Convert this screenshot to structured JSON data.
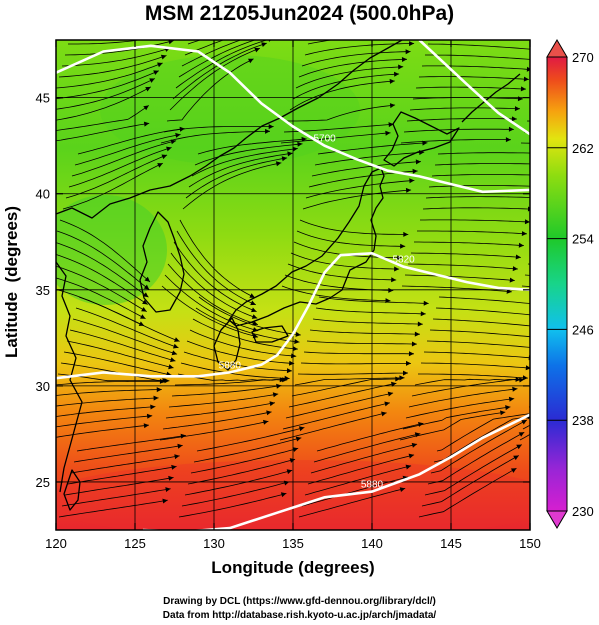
{
  "chart_data": {
    "type": "heatmap",
    "title": "MSM 21Z05Jun2024 (500.0hPa)",
    "xlabel": "Longitude (degrees)",
    "ylabel": "Latitude  (degrees)",
    "xlim": [
      120,
      150
    ],
    "ylim": [
      22.5,
      48
    ],
    "x_ticks": [
      "120",
      "125",
      "130",
      "135",
      "140",
      "145",
      "150"
    ],
    "x_tick_values": [
      120,
      125,
      130,
      135,
      140,
      145,
      150
    ],
    "y_ticks": [
      "25",
      "30",
      "35",
      "40",
      "45"
    ],
    "y_tick_values": [
      25,
      30,
      35,
      40,
      45
    ],
    "grid": true,
    "colorbar": {
      "position": "right",
      "range": [
        230,
        270
      ],
      "tick_labels": [
        "230",
        "238",
        "246",
        "254",
        "262",
        "270"
      ],
      "tick_values": [
        230,
        238,
        246,
        254,
        262,
        270
      ],
      "colors": [
        "#d61fd0",
        "#9a25d6",
        "#2b2bd3",
        "#0d72e8",
        "#10c0ee",
        "#18d48a",
        "#1fc92a",
        "#8fdd10",
        "#e2e410",
        "#f6a30f",
        "#ee4b1c",
        "#e01a44"
      ]
    },
    "contour_labels": [
      "5700",
      "5820",
      "5880"
    ],
    "contours": [
      {
        "label": "5700",
        "points": [
          [
            120,
            46.3
          ],
          [
            123,
            47.4
          ],
          [
            126,
            47.7
          ],
          [
            129,
            47.4
          ],
          [
            131,
            46.3
          ],
          [
            133,
            44.7
          ],
          [
            135,
            43.5
          ],
          [
            137,
            42.5
          ],
          [
            139,
            41.8
          ],
          [
            141,
            41.2
          ],
          [
            143,
            40.9
          ],
          [
            145,
            40.5
          ],
          [
            147,
            40.1
          ],
          [
            150,
            40.2
          ]
        ]
      },
      {
        "label": "",
        "points": [
          [
            143,
            48
          ],
          [
            146,
            45.7
          ],
          [
            148,
            44.2
          ],
          [
            150,
            43.1
          ]
        ]
      },
      {
        "label": "5820",
        "points": [
          [
            135,
            32.7
          ],
          [
            136,
            34.2
          ],
          [
            137,
            35.9
          ],
          [
            138,
            36.8
          ],
          [
            140,
            36.9
          ],
          [
            142,
            36.2
          ],
          [
            144,
            35.8
          ],
          [
            146,
            35.4
          ],
          [
            148,
            35.1
          ],
          [
            150,
            35.0
          ]
        ]
      },
      {
        "label": "5880",
        "points": [
          [
            120,
            30.4
          ],
          [
            123,
            30.7
          ],
          [
            126,
            30.5
          ],
          [
            129,
            30.5
          ],
          [
            131,
            30.7
          ],
          [
            133,
            31.1
          ],
          [
            134,
            31.6
          ],
          [
            135,
            32.7
          ]
        ]
      },
      {
        "label": "5880",
        "points": [
          [
            125.5,
            22.5
          ],
          [
            128,
            22.4
          ],
          [
            131,
            22.6
          ],
          [
            134,
            23.4
          ],
          [
            137,
            24.2
          ],
          [
            140,
            24.5
          ],
          [
            143,
            25.4
          ],
          [
            145,
            26.3
          ],
          [
            147,
            27.3
          ],
          [
            150,
            28.5
          ]
        ]
      }
    ]
  },
  "credits": {
    "line1": "Drawing by DCL (https://www.gfd-dennou.org/library/dcl/)",
    "line2": "Data from http://database.rish.kyoto-u.ac.jp/arch/jmadata/"
  }
}
